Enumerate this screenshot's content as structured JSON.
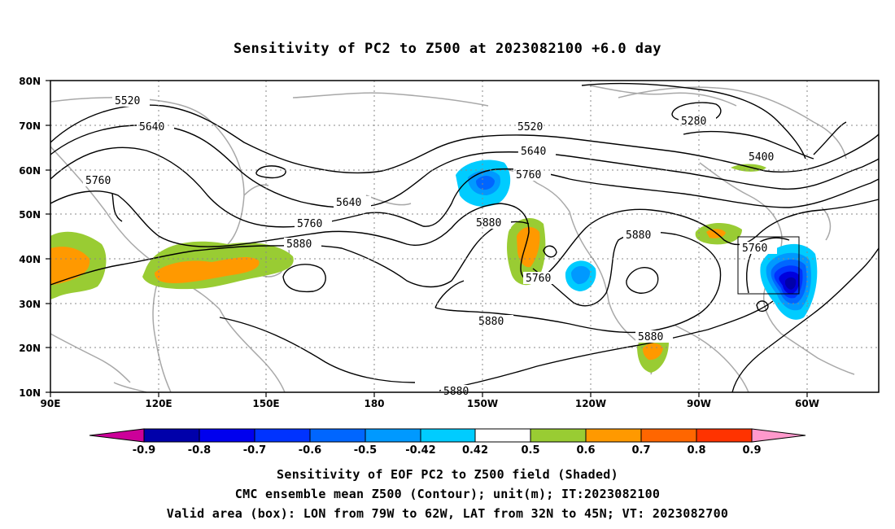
{
  "title": "Sensitivity of PC2 to Z500 at 2023082100 +6.0 day",
  "map": {
    "lat_ticks": [
      "80N",
      "70N",
      "60N",
      "50N",
      "40N",
      "30N",
      "20N",
      "10N"
    ],
    "lon_ticks": [
      "90E",
      "120E",
      "150E",
      "180",
      "150W",
      "120W",
      "90W",
      "60W"
    ],
    "lon_range": [
      "90E",
      "30W"
    ],
    "lat_range": [
      "10N",
      "80N"
    ],
    "grid": "dotted",
    "valid_box": {
      "lon": [
        "79W",
        "62W"
      ],
      "lat": [
        "32N",
        "45N"
      ]
    },
    "contour_labels": [
      "5520",
      "5640",
      "5760",
      "5520",
      "5640",
      "5760",
      "5640",
      "5760",
      "5880",
      "5880",
      "5760",
      "5880",
      "5880",
      "5880",
      "5280",
      "5400",
      "5760",
      "5880"
    ],
    "colors": {
      "coast": "#a8a8a8",
      "contour": "#000000",
      "pos_0_5": "#99cc33",
      "pos_0_6": "#ff9900",
      "neg_0_42": "#00ccff",
      "neg_0_5": "#0099ff",
      "neg_0_6": "#0066ff",
      "neg_0_7": "#0033ff",
      "neg_0_8": "#0000dd",
      "neg_0_9": "#0000aa"
    }
  },
  "colorbar": {
    "labels": [
      "-0.9",
      "-0.8",
      "-0.7",
      "-0.6",
      "-0.5",
      "-0.42",
      "0.42",
      "0.5",
      "0.6",
      "0.7",
      "0.8",
      "0.9"
    ],
    "colors": [
      "#cc0099",
      "#0000aa",
      "#0000ee",
      "#0033ff",
      "#0066ff",
      "#0099ff",
      "#00ccff",
      "#ffffff",
      "#99cc33",
      "#ff9900",
      "#ff6600",
      "#ff3300",
      "#ff0000",
      "#ff99cc"
    ]
  },
  "footer": {
    "line1": "Sensitivity of EOF PC2 to Z500 field (Shaded)",
    "line2": "CMC ensemble mean Z500 (Contour); unit(m); IT:2023082100",
    "line3": "Valid area (box): LON from 79W to 62W, LAT from 32N to 45N; VT: 2023082700"
  }
}
